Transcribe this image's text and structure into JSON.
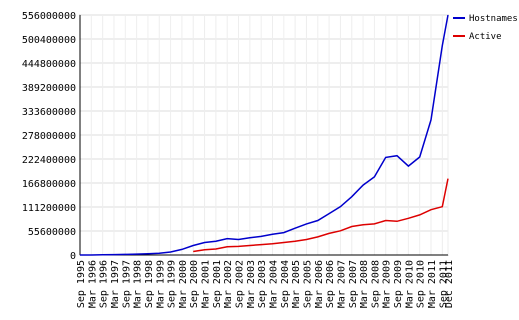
{
  "chart_data": {
    "type": "line",
    "categories": [
      "Sep 1995",
      "Mar 1996",
      "Sep 1996",
      "Mar 1997",
      "Sep 1997",
      "Mar 1998",
      "Sep 1998",
      "Mar 1999",
      "Sep 1999",
      "Mar 2000",
      "Sep 2000",
      "Mar 2001",
      "Sep 2001",
      "Mar 2002",
      "Sep 2002",
      "Mar 2003",
      "Sep 2003",
      "Mar 2004",
      "Sep 2004",
      "Mar 2005",
      "Sep 2005",
      "Mar 2006",
      "Sep 2006",
      "Mar 2007",
      "Sep 2007",
      "Mar 2008",
      "Sep 2008",
      "Mar 2009",
      "Sep 2009",
      "Mar 2010",
      "Sep 2010",
      "Mar 2011",
      "Sep 2011",
      "Dec 2011"
    ],
    "series": [
      {
        "name": "Hostnames",
        "color": "#0000cc",
        "values": [
          20000,
          100000,
          400000,
          1000000,
          1300000,
          2000000,
          3000000,
          4000000,
          7000000,
          13000000,
          22000000,
          29000000,
          32000000,
          38000000,
          36000000,
          40000000,
          43000000,
          48000000,
          52000000,
          62000000,
          72000000,
          80000000,
          96000000,
          112000000,
          135000000,
          162000000,
          181000000,
          226000000,
          230000000,
          206000000,
          227000000,
          313000000,
          485000000,
          556000000
        ]
      },
      {
        "name": "Active",
        "color": "#dd0000",
        "values": [
          null,
          null,
          null,
          null,
          null,
          null,
          null,
          null,
          null,
          null,
          8000000,
          12000000,
          14000000,
          19000000,
          20000000,
          22000000,
          24000000,
          26000000,
          29000000,
          32000000,
          36000000,
          42000000,
          50000000,
          56000000,
          66000000,
          70000000,
          72000000,
          80000000,
          78000000,
          85000000,
          93000000,
          105000000,
          112000000,
          177000000
        ]
      }
    ],
    "ylim": [
      0,
      556000000
    ],
    "yticks": [
      0,
      55600000,
      111200000,
      166800000,
      222400000,
      278000000,
      333600000,
      389200000,
      444800000,
      500400000,
      556000000
    ],
    "grid": true,
    "legend": "top-right"
  }
}
